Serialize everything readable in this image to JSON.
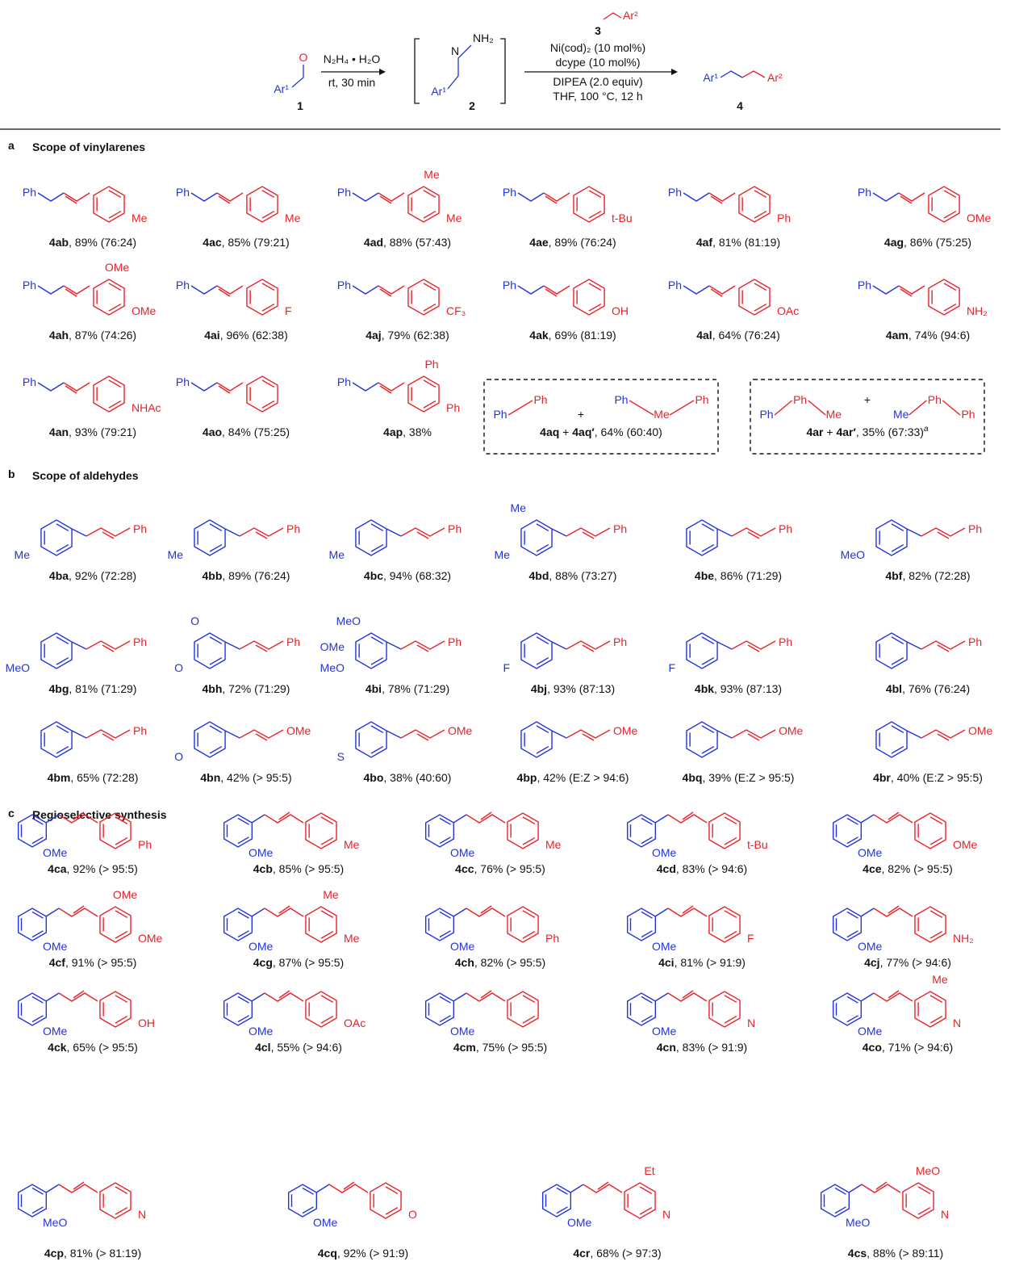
{
  "scheme": {
    "o": "O",
    "ar1a": "Ar¹",
    "c1": "1",
    "reagent1": "N₂H₄ • H₂O",
    "cond1": "rt, 30 min",
    "n": "N",
    "nh2": "NH₂",
    "ar1b": "Ar¹",
    "c2": "2",
    "c3": "3",
    "ar2a": "Ar²",
    "cat": "Ni(cod)₂ (10 mol%)",
    "lig": "dcype (10 mol%)",
    "base": "DIPEA (2.0 equiv)",
    "cond2": "THF, 100 °C, 12 h",
    "ar1c": "Ar¹",
    "ar2b": "Ar²",
    "c4": "4"
  },
  "sections": [
    {
      "letter": "a",
      "title": "Scope of vinylarenes",
      "compounds": [
        {
          "id": "4ab",
          "text": ", 89% (76:24)",
          "atoms": [
            "Ph",
            "Me"
          ]
        },
        {
          "id": "4ac",
          "text": ", 85% (79:21)",
          "atoms": [
            "Ph",
            "Me"
          ]
        },
        {
          "id": "4ad",
          "text": ", 88% (57:43)",
          "atoms": [
            "Ph",
            "Me",
            "Me"
          ]
        },
        {
          "id": "4ae",
          "text": ", 89% (76:24)",
          "atoms": [
            "Ph",
            "t-Bu"
          ]
        },
        {
          "id": "4af",
          "text": ", 81% (81:19)",
          "atoms": [
            "Ph",
            "Ph"
          ]
        },
        {
          "id": "4ag",
          "text": ", 86% (75:25)",
          "atoms": [
            "Ph",
            "OMe"
          ]
        },
        {
          "id": "4ah",
          "text": ", 87% (74:26)",
          "atoms": [
            "Ph",
            "OMe",
            "OMe"
          ]
        },
        {
          "id": "4ai",
          "text": ", 96% (62:38)",
          "atoms": [
            "Ph",
            "F"
          ]
        },
        {
          "id": "4aj",
          "text": ", 79% (62:38)",
          "atoms": [
            "Ph",
            "CF₃"
          ]
        },
        {
          "id": "4ak",
          "text": ", 69% (81:19)",
          "atoms": [
            "Ph",
            "OH"
          ]
        },
        {
          "id": "4al",
          "text": ", 64% (76:24)",
          "atoms": [
            "Ph",
            "OAc"
          ]
        },
        {
          "id": "4am",
          "text": ", 74% (94:6)",
          "atoms": [
            "Ph",
            "NH₂"
          ]
        },
        {
          "id": "4an",
          "text": ", 93% (79:21)",
          "atoms": [
            "Ph",
            "NHAc"
          ]
        },
        {
          "id": "4ao",
          "text": ", 84% (75:25)",
          "atoms": [
            "Ph"
          ]
        },
        {
          "id": "4ap",
          "text": ", 38%",
          "atoms": [
            "Ph",
            "Ph",
            "Ph"
          ]
        },
        {
          "id": "4aq",
          "text": " + ",
          "id2": "4aq′",
          "text2": ", 64% (60:40)",
          "atoms": [
            "Ph",
            "Ph",
            "+",
            "Ph",
            "Me",
            "Ph"
          ]
        },
        {
          "id": "4ar",
          "text": " + ",
          "id2": "4ar′",
          "text2": ", 35% (67:33)",
          "note": "a",
          "atoms": [
            "Ph",
            "Ph",
            "Me",
            "+",
            "Me",
            "Ph",
            "Ph"
          ]
        }
      ]
    },
    {
      "letter": "b",
      "title": "Scope of aldehydes",
      "compounds": [
        {
          "id": "4ba",
          "text": ", 92% (72:28)",
          "atoms": [
            "Me",
            "Ph"
          ]
        },
        {
          "id": "4bb",
          "text": ", 89% (76:24)",
          "atoms": [
            "Me",
            "Ph"
          ]
        },
        {
          "id": "4bc",
          "text": ", 94% (68:32)",
          "atoms": [
            "Me",
            "Ph"
          ]
        },
        {
          "id": "4bd",
          "text": ", 88% (73:27)",
          "atoms": [
            "Me",
            "Me",
            "Ph"
          ]
        },
        {
          "id": "4be",
          "text": ", 86% (71:29)",
          "atoms": [
            "Ph"
          ]
        },
        {
          "id": "4bf",
          "text": ", 82% (72:28)",
          "atoms": [
            "MeO",
            "Ph"
          ]
        },
        {
          "id": "4bg",
          "text": ", 81% (71:29)",
          "atoms": [
            "MeO",
            "Ph"
          ]
        },
        {
          "id": "4bh",
          "text": ", 72% (71:29)",
          "atoms": [
            "O",
            "O",
            "Ph"
          ]
        },
        {
          "id": "4bi",
          "text": ", 78% (71:29)",
          "atoms": [
            "MeO",
            "MeO",
            "OMe",
            "Ph"
          ]
        },
        {
          "id": "4bj",
          "text": ", 93% (87:13)",
          "atoms": [
            "F",
            "Ph"
          ]
        },
        {
          "id": "4bk",
          "text": ", 93% (87:13)",
          "atoms": [
            "F",
            "Ph"
          ]
        },
        {
          "id": "4bl",
          "text": ", 76% (76:24)",
          "atoms": [
            "Ph"
          ]
        },
        {
          "id": "4bm",
          "text": ", 65% (72:28)",
          "atoms": [
            "Ph"
          ]
        },
        {
          "id": "4bn",
          "text": ", 42% (> 95:5)",
          "atoms": [
            "O",
            "OMe"
          ]
        },
        {
          "id": "4bo",
          "text": ", 38% (40:60)",
          "atoms": [
            "S",
            "OMe"
          ]
        },
        {
          "id": "4bp",
          "text": ", 42% (E:Z > 94:6)",
          "atoms": [
            "OMe"
          ]
        },
        {
          "id": "4bq",
          "text": ", 39% (E:Z > 95:5)",
          "atoms": [
            "OMe"
          ]
        },
        {
          "id": "4br",
          "text": ", 40% (E:Z > 95:5)",
          "atoms": [
            "OMe"
          ]
        }
      ]
    },
    {
      "letter": "c",
      "title": "Regioselective synthesis",
      "compounds": [
        {
          "id": "4ca",
          "text": ", 92% (> 95:5)",
          "atoms": [
            "OMe",
            "Ph"
          ]
        },
        {
          "id": "4cb",
          "text": ", 85% (> 95:5)",
          "atoms": [
            "OMe",
            "Me"
          ]
        },
        {
          "id": "4cc",
          "text": ", 76% (> 95:5)",
          "atoms": [
            "OMe",
            "Me"
          ]
        },
        {
          "id": "4cd",
          "text": ", 83% (> 94:6)",
          "atoms": [
            "OMe",
            "t-Bu"
          ]
        },
        {
          "id": "4ce",
          "text": ", 82% (> 95:5)",
          "atoms": [
            "OMe",
            "OMe"
          ]
        },
        {
          "id": "4cf",
          "text": ", 91% (> 95:5)",
          "atoms": [
            "OMe",
            "OMe",
            "OMe"
          ]
        },
        {
          "id": "4cg",
          "text": ", 87% (> 95:5)",
          "atoms": [
            "OMe",
            "Me",
            "Me"
          ]
        },
        {
          "id": "4ch",
          "text": ", 82% (> 95:5)",
          "atoms": [
            "OMe",
            "Ph"
          ]
        },
        {
          "id": "4ci",
          "text": ", 81% (> 91:9)",
          "atoms": [
            "OMe",
            "F"
          ]
        },
        {
          "id": "4cj",
          "text": ", 77% (> 94:6)",
          "atoms": [
            "OMe",
            "NH₂"
          ]
        },
        {
          "id": "4ck",
          "text": ", 65% (> 95:5)",
          "atoms": [
            "OMe",
            "OH"
          ]
        },
        {
          "id": "4cl",
          "text": ", 55% (> 94:6)",
          "atoms": [
            "OMe",
            "OAc"
          ]
        },
        {
          "id": "4cm",
          "text": ", 75% (> 95:5)",
          "atoms": [
            "OMe"
          ]
        },
        {
          "id": "4cn",
          "text": ", 83% (> 91:9)",
          "atoms": [
            "OMe",
            "N"
          ]
        },
        {
          "id": "4co",
          "text": ", 71% (> 94:6)",
          "atoms": [
            "OMe",
            "N",
            "Me"
          ]
        },
        {
          "id": "4cp",
          "text": ", 81% (> 81:19)",
          "atoms": [
            "MeO",
            "N"
          ]
        },
        {
          "id": "4cq",
          "text": ", 92% (> 91:9)",
          "atoms": [
            "OMe",
            "O"
          ]
        },
        {
          "id": "4cr",
          "text": ", 68% (> 97:3)",
          "atoms": [
            "OMe",
            "N",
            "Et"
          ]
        },
        {
          "id": "4cs",
          "text": ", 88% (> 89:11)",
          "atoms": [
            "MeO",
            "N",
            "MeO"
          ]
        }
      ]
    }
  ]
}
